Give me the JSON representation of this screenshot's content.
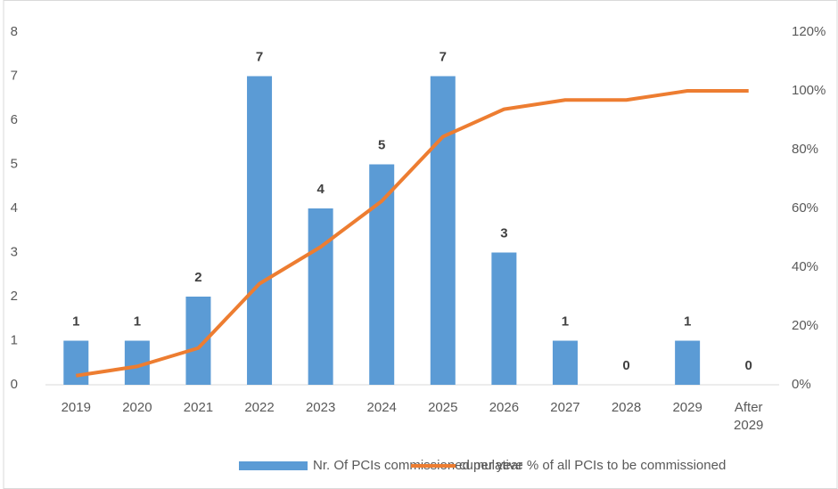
{
  "chart_data": {
    "type": "bar_line",
    "categories": [
      "2019",
      "2020",
      "2021",
      "2022",
      "2023",
      "2024",
      "2025",
      "2026",
      "2027",
      "2028",
      "2029",
      "After 2029"
    ],
    "series": [
      {
        "name": "Nr. Of PCIs commissioned per year",
        "type": "bar",
        "color": "#5b9bd5",
        "values": [
          1,
          1,
          2,
          7,
          4,
          5,
          7,
          3,
          1,
          0,
          1,
          0
        ]
      },
      {
        "name": "cumulative % of all PCIs to be commissioned",
        "type": "line",
        "axis": "y2",
        "color": "#ed7d31",
        "values": [
          3.1,
          6.25,
          12.5,
          34.4,
          46.9,
          62.5,
          84.4,
          93.75,
          96.9,
          96.9,
          100,
          100
        ]
      }
    ],
    "ylim": [
      0,
      8
    ],
    "yticks": [
      0,
      1,
      2,
      3,
      4,
      5,
      6,
      7,
      8
    ],
    "y2lim": [
      0,
      120
    ],
    "y2ticks": [
      {
        "value": 0,
        "label": "0%"
      },
      {
        "value": 20,
        "label": "20%"
      },
      {
        "value": 40,
        "label": "40%"
      },
      {
        "value": 60,
        "label": "60%"
      },
      {
        "value": 80,
        "label": "80%"
      },
      {
        "value": 100,
        "label": "100%"
      },
      {
        "value": 120,
        "label": "120%"
      }
    ],
    "grid": false,
    "legend": "bottom"
  }
}
